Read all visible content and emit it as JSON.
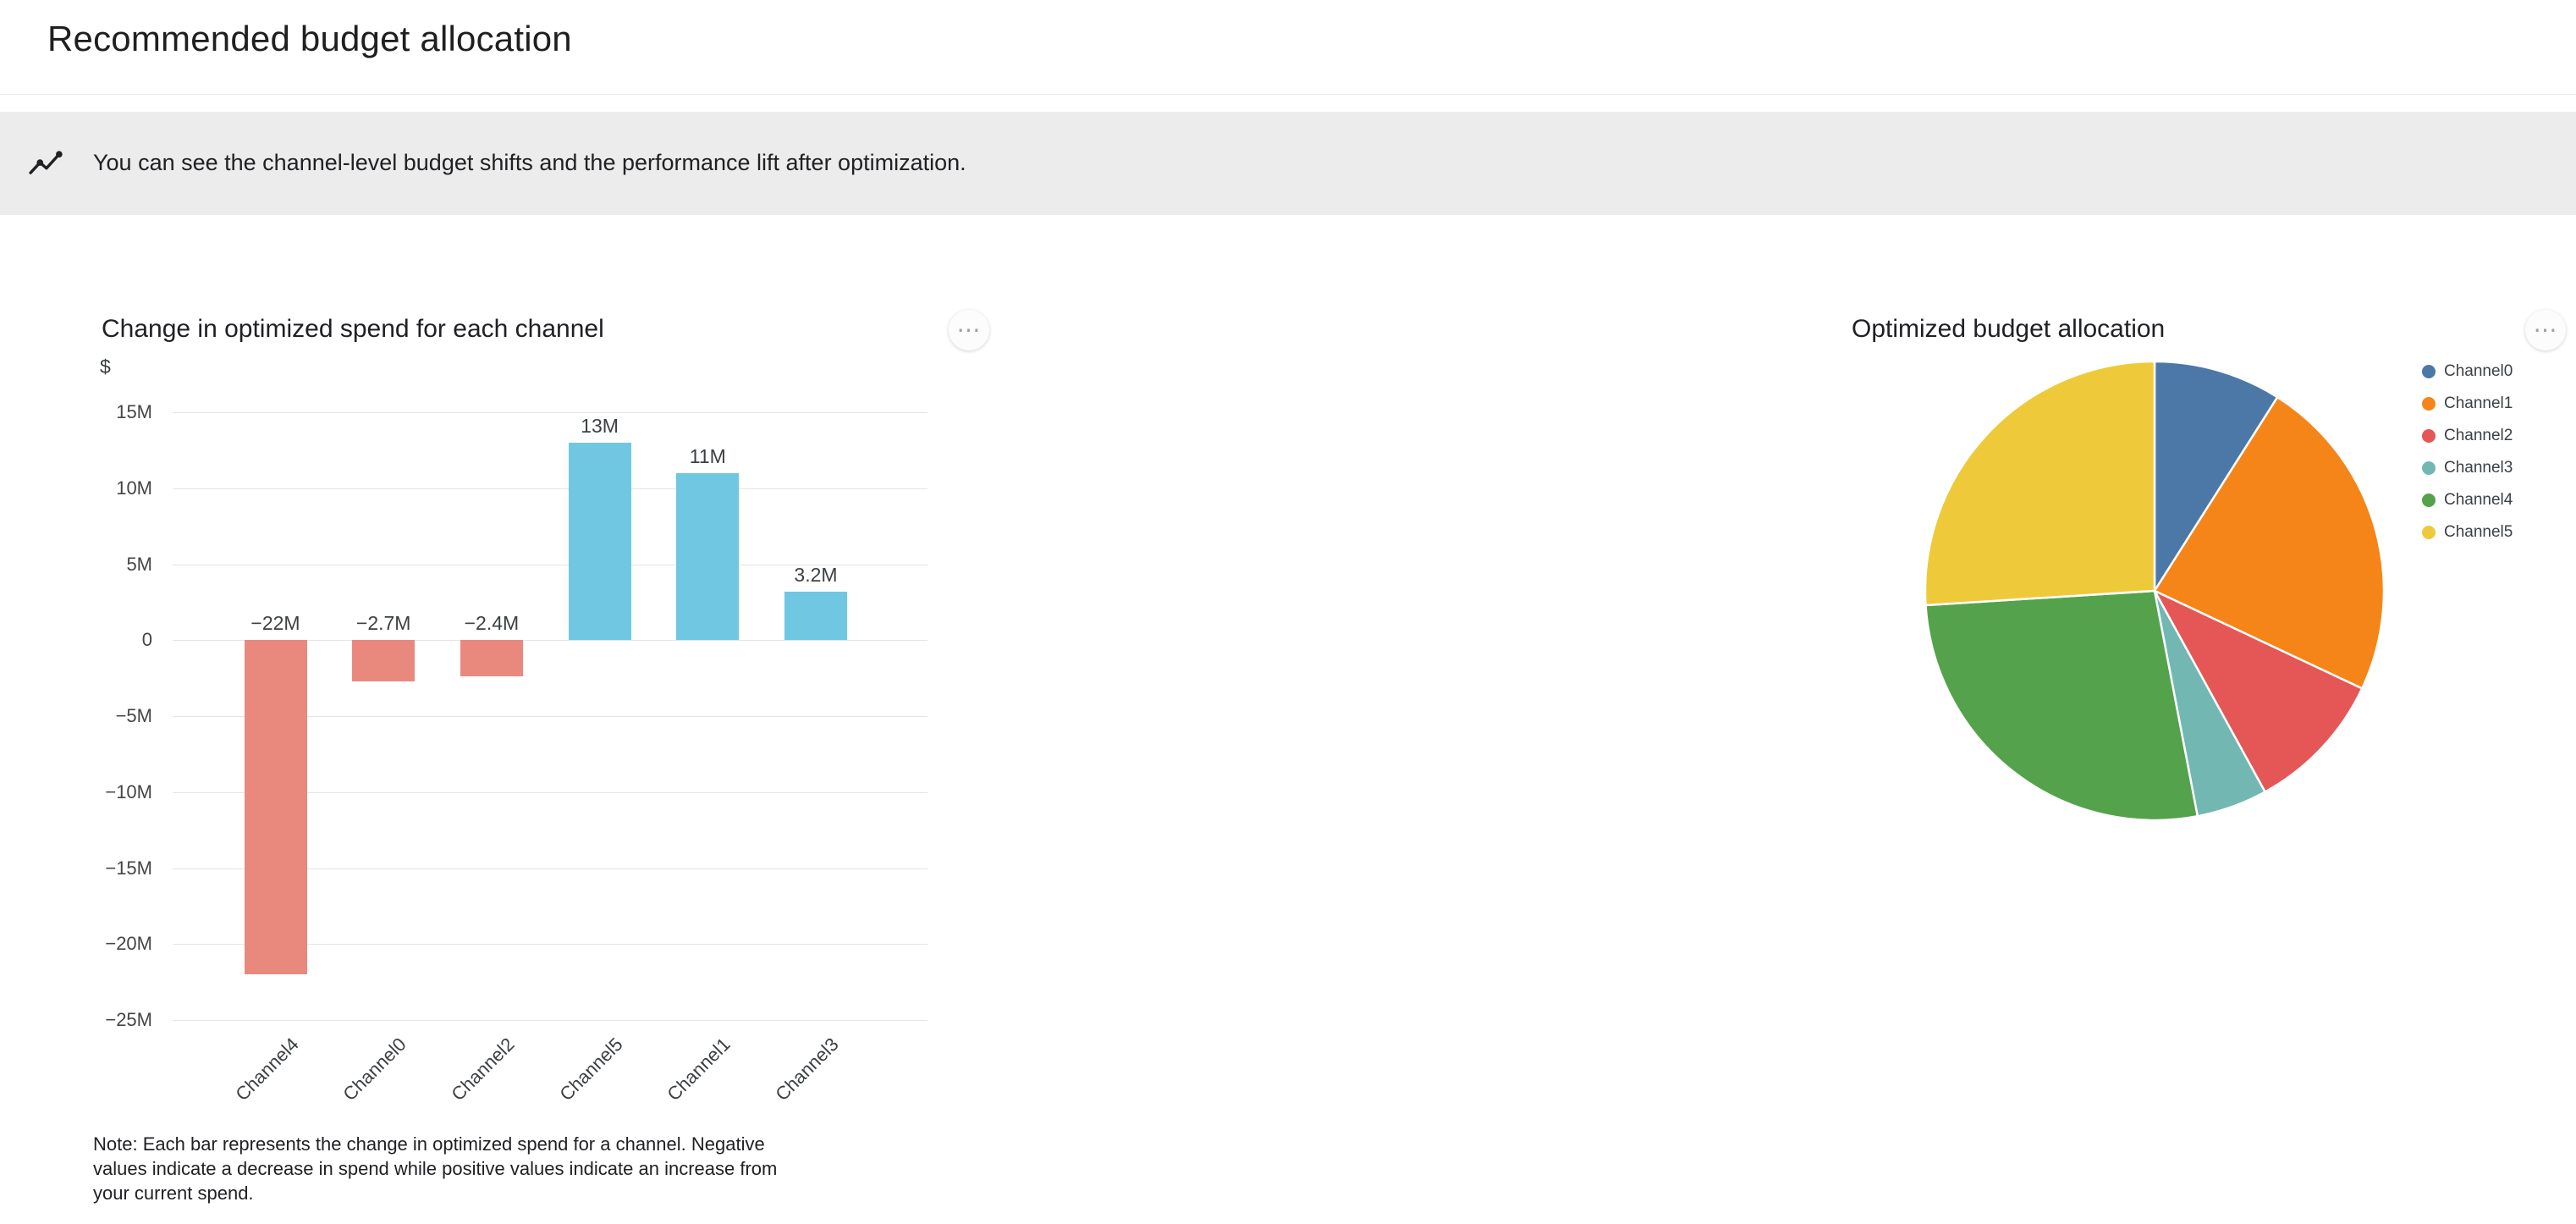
{
  "page": {
    "title": "Recommended budget allocation"
  },
  "banner": {
    "icon": "insights-icon",
    "text": "You can see the channel-level budget shifts and the performance lift after optimization."
  },
  "icons": {
    "menu": "⋯"
  },
  "chart_data": [
    {
      "type": "bar",
      "title": "Change in optimized spend for each channel",
      "ylabel": "$",
      "categories": [
        "Channel4",
        "Channel0",
        "Channel2",
        "Channel5",
        "Channel1",
        "Channel3"
      ],
      "values": [
        -22,
        -2.7,
        -2.4,
        13,
        11,
        3.2
      ],
      "value_labels": [
        "−22M",
        "−2.7M",
        "−2.4M",
        "13M",
        "11M",
        "3.2M"
      ],
      "unit": "M",
      "ylim": [
        -25,
        15
      ],
      "yticks": [
        15,
        10,
        5,
        0,
        -5,
        -10,
        -15,
        -20,
        -25
      ],
      "ytick_labels": [
        "15M",
        "10M",
        "5M",
        "0",
        "−5M",
        "−10M",
        "−15M",
        "−20M",
        "−25M"
      ],
      "grid": true,
      "positive_color": "#6FC7E2",
      "negative_color": "#E9897E",
      "note": "Note: Each bar represents the change in optimized spend for a channel. Negative values indicate a decrease in spend while positive values indicate an increase from your current spend."
    },
    {
      "type": "pie",
      "title": "Optimized budget allocation",
      "labels": [
        "Channel0",
        "Channel1",
        "Channel2",
        "Channel3",
        "Channel4",
        "Channel5"
      ],
      "values": [
        9,
        23,
        10,
        5,
        27,
        26
      ],
      "unit": "percent",
      "colors": [
        "#4C78A8",
        "#F58518",
        "#E45756",
        "#72B7B2",
        "#54A24B",
        "#EECA3B"
      ],
      "legend_position": "right",
      "start_angle_deg": 0,
      "direction": "clockwise"
    }
  ]
}
